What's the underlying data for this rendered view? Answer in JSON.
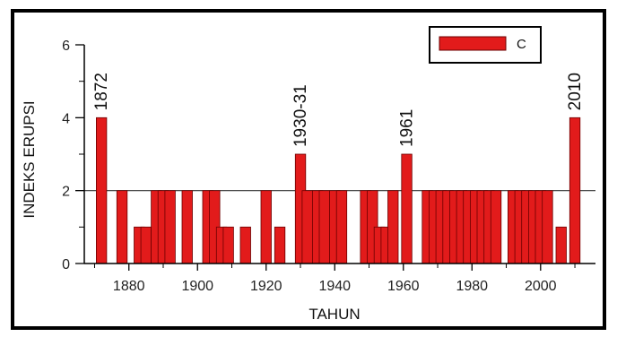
{
  "chart_data": {
    "type": "bar",
    "xlabel": "TAHUN",
    "ylabel": "INDEKS ERUPSI",
    "xlim": [
      1867,
      2016
    ],
    "ylim": [
      0,
      6
    ],
    "xticks": [
      1880,
      1900,
      1920,
      1940,
      1960,
      1980,
      2000
    ],
    "yticks": [
      0,
      2,
      4,
      6
    ],
    "reference_line": 2,
    "legend": {
      "label": "C",
      "position": "top-right"
    },
    "color": "#e21b1b",
    "edge_color": "#6b0000",
    "annotations": [
      {
        "text": "1872",
        "x": 1872,
        "y": 4
      },
      {
        "text": "1930-31",
        "x": 1930,
        "y": 3
      },
      {
        "text": "1961",
        "x": 1961,
        "y": 3
      },
      {
        "text": "2010",
        "x": 2010,
        "y": 4
      }
    ],
    "x": [
      1872,
      1878,
      1883,
      1885,
      1888,
      1890,
      1892,
      1897,
      1903,
      1905,
      1907,
      1909,
      1914,
      1920,
      1924,
      1930,
      1932,
      1935,
      1937,
      1940,
      1942,
      1949,
      1951,
      1953,
      1955,
      1957,
      1961,
      1967,
      1969,
      1971,
      1973,
      1975,
      1977,
      1979,
      1981,
      1983,
      1985,
      1987,
      1992,
      1994,
      1996,
      1998,
      2000,
      2002,
      2006,
      2010
    ],
    "values": [
      4,
      2,
      1,
      1,
      2,
      2,
      2,
      2,
      2,
      2,
      1,
      1,
      1,
      2,
      1,
      3,
      2,
      2,
      2,
      2,
      2,
      2,
      2,
      1,
      1,
      2,
      3,
      2,
      2,
      2,
      2,
      2,
      2,
      2,
      2,
      2,
      2,
      2,
      2,
      2,
      2,
      2,
      2,
      2,
      1,
      4
    ]
  }
}
